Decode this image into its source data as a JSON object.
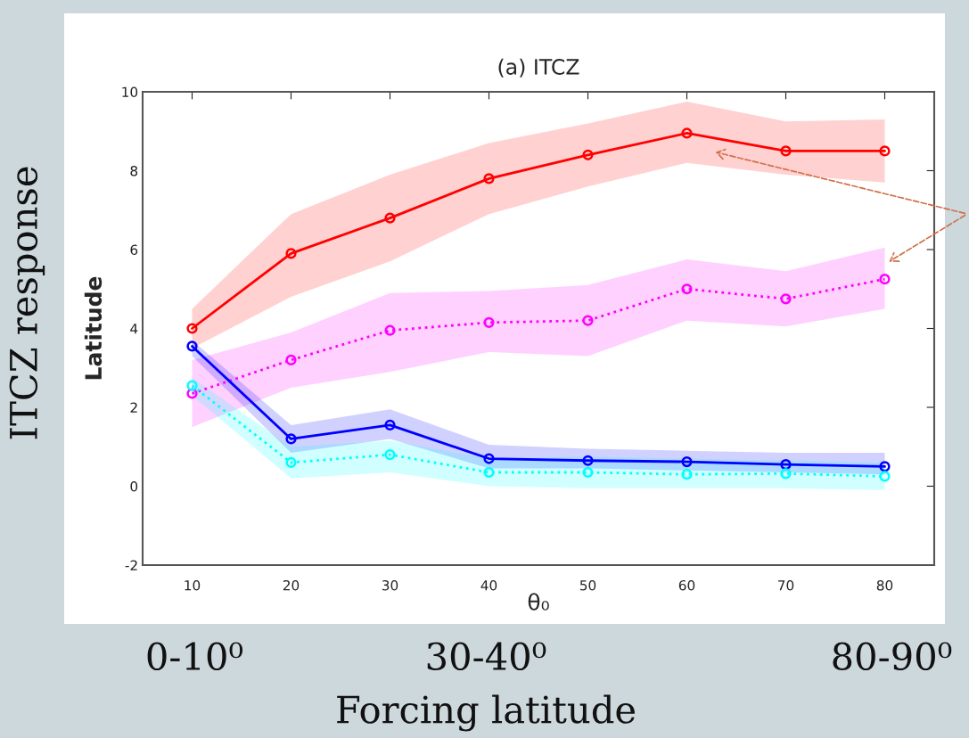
{
  "chart_data": {
    "type": "line",
    "title": "(a) ITCZ",
    "xlabel": "θ₀",
    "ylabel": "Latitude",
    "x": [
      10,
      20,
      30,
      40,
      50,
      60,
      70,
      80
    ],
    "xlim": [
      5,
      85
    ],
    "xticks": [
      10,
      20,
      30,
      40,
      50,
      60,
      70,
      80
    ],
    "ylim": [
      -2,
      10
    ],
    "yticks": [
      -2,
      0,
      2,
      4,
      6,
      8,
      10
    ],
    "grid": false,
    "marker": "circle",
    "series": [
      {
        "color": "#ff0000",
        "line_style": "solid",
        "values": [
          4.0,
          5.9,
          6.8,
          7.8,
          8.4,
          8.95,
          8.5,
          8.5
        ],
        "lower": [
          3.5,
          4.8,
          5.7,
          6.9,
          7.6,
          8.2,
          7.9,
          7.7
        ],
        "upper": [
          4.5,
          6.9,
          7.9,
          8.7,
          9.2,
          9.75,
          9.25,
          9.3
        ]
      },
      {
        "color": "#ff00ff",
        "line_style": "dotted",
        "values": [
          2.35,
          3.2,
          3.95,
          4.15,
          4.2,
          5.0,
          4.75,
          5.25
        ],
        "lower": [
          1.5,
          2.5,
          2.9,
          3.4,
          3.3,
          4.2,
          4.05,
          4.5
        ],
        "upper": [
          3.2,
          3.9,
          4.9,
          4.95,
          5.1,
          5.75,
          5.45,
          6.05
        ]
      },
      {
        "color": "#0000ff",
        "line_style": "solid",
        "values": [
          3.55,
          1.2,
          1.55,
          0.7,
          0.65,
          0.62,
          0.55,
          0.5
        ],
        "lower": [
          3.3,
          0.85,
          1.2,
          0.45,
          0.45,
          0.4,
          0.35,
          0.3
        ],
        "upper": [
          3.7,
          1.55,
          1.95,
          1.05,
          0.95,
          0.9,
          0.85,
          0.85
        ]
      },
      {
        "color": "#00ffff",
        "line_style": "dotted",
        "values": [
          2.55,
          0.6,
          0.8,
          0.35,
          0.35,
          0.3,
          0.32,
          0.25
        ],
        "lower": [
          2.3,
          0.2,
          0.35,
          0.0,
          -0.05,
          -0.05,
          -0.05,
          -0.1
        ],
        "upper": [
          2.75,
          1.0,
          1.15,
          0.7,
          0.75,
          0.7,
          0.65,
          0.6
        ]
      }
    ],
    "annotations": [
      "ITCZ response",
      "0-10⁰",
      "30-40⁰",
      "80-90⁰",
      "Forcing latitude"
    ]
  }
}
